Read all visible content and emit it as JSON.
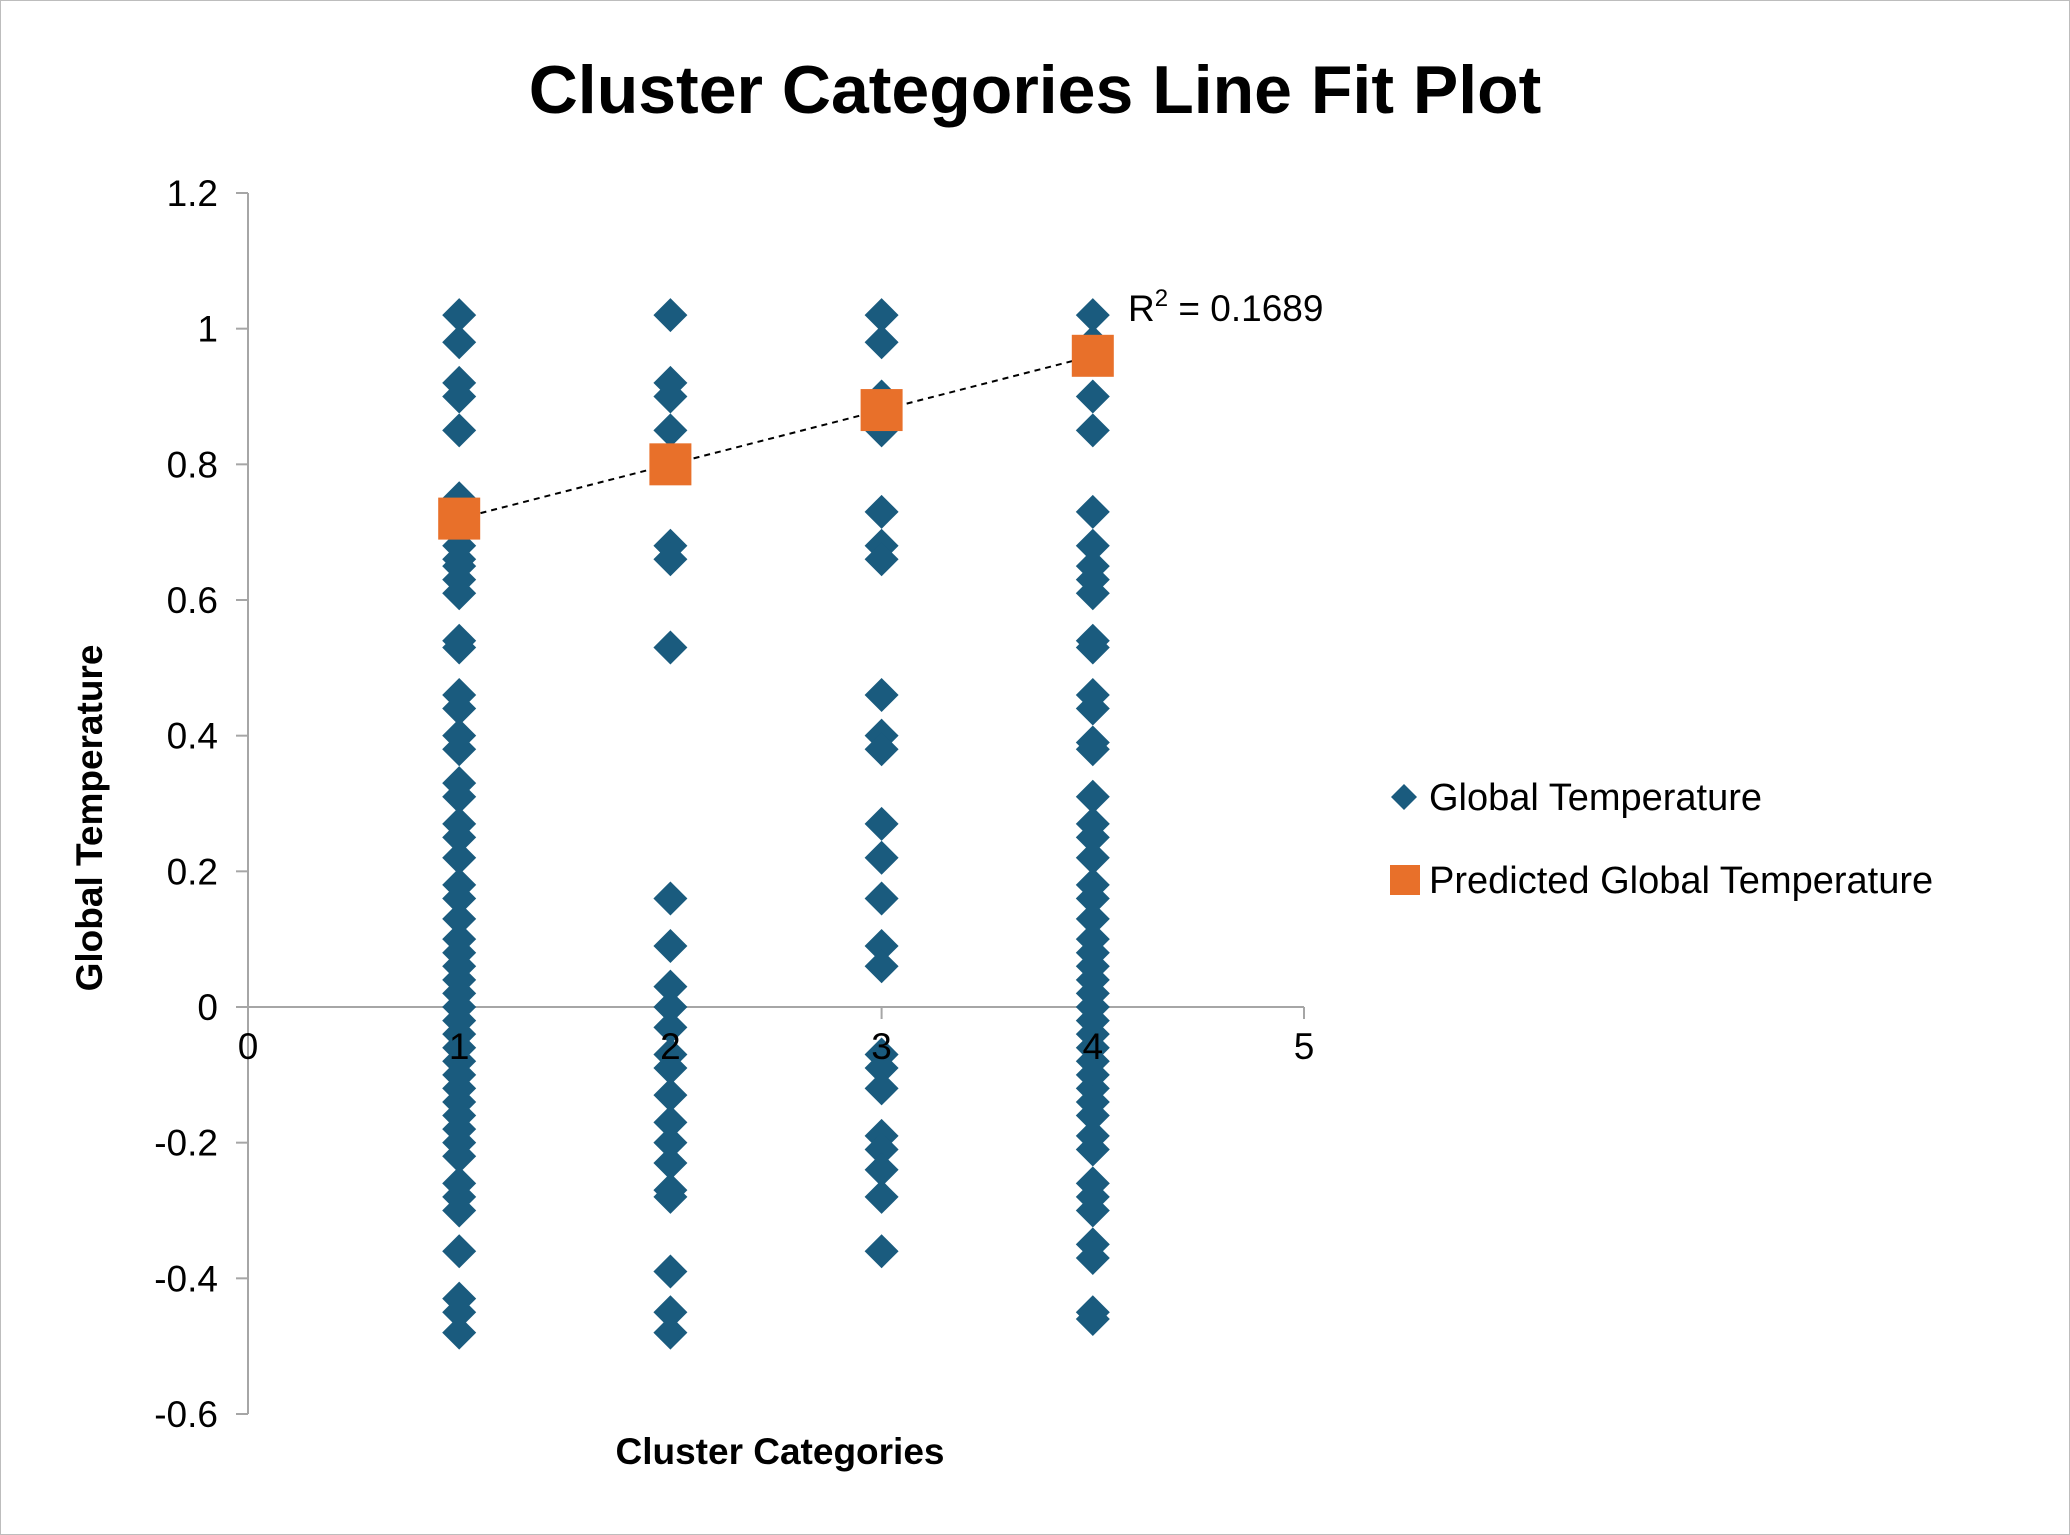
{
  "chart_data": {
    "type": "scatter",
    "title": "Cluster Categories Line Fit  Plot",
    "xlabel": "Cluster Categories",
    "ylabel": "Global Temperature",
    "xlim": [
      0,
      5
    ],
    "ylim": [
      -0.6,
      1.2
    ],
    "x_ticks": [
      "0",
      "1",
      "2",
      "3",
      "4",
      "5"
    ],
    "y_ticks": [
      "1.2",
      "1",
      "0.8",
      "0.6",
      "0.4",
      "0.2",
      "0",
      "-0.2",
      "-0.4",
      "-0.6"
    ],
    "grid": false,
    "legend_position": "right",
    "annotation": "R² = 0.1689",
    "series": [
      {
        "name": "Global Temperature",
        "marker": "diamond",
        "color": "#1a5b7e",
        "points": [
          [
            1,
            1.02
          ],
          [
            1,
            0.98
          ],
          [
            1,
            0.92
          ],
          [
            1,
            0.9
          ],
          [
            1,
            0.85
          ],
          [
            1,
            0.75
          ],
          [
            1,
            0.72
          ],
          [
            1,
            0.7
          ],
          [
            1,
            0.68
          ],
          [
            1,
            0.66
          ],
          [
            1,
            0.65
          ],
          [
            1,
            0.63
          ],
          [
            1,
            0.61
          ],
          [
            1,
            0.54
          ],
          [
            1,
            0.53
          ],
          [
            1,
            0.46
          ],
          [
            1,
            0.44
          ],
          [
            1,
            0.4
          ],
          [
            1,
            0.38
          ],
          [
            1,
            0.33
          ],
          [
            1,
            0.31
          ],
          [
            1,
            0.27
          ],
          [
            1,
            0.25
          ],
          [
            1,
            0.22
          ],
          [
            1,
            0.18
          ],
          [
            1,
            0.16
          ],
          [
            1,
            0.13
          ],
          [
            1,
            0.1
          ],
          [
            1,
            0.08
          ],
          [
            1,
            0.06
          ],
          [
            1,
            0.04
          ],
          [
            1,
            0.02
          ],
          [
            1,
            0.0
          ],
          [
            1,
            -0.02
          ],
          [
            1,
            -0.04
          ],
          [
            1,
            -0.06
          ],
          [
            1,
            -0.08
          ],
          [
            1,
            -0.1
          ],
          [
            1,
            -0.12
          ],
          [
            1,
            -0.14
          ],
          [
            1,
            -0.16
          ],
          [
            1,
            -0.18
          ],
          [
            1,
            -0.2
          ],
          [
            1,
            -0.22
          ],
          [
            1,
            -0.26
          ],
          [
            1,
            -0.28
          ],
          [
            1,
            -0.3
          ],
          [
            1,
            -0.36
          ],
          [
            1,
            -0.43
          ],
          [
            1,
            -0.45
          ],
          [
            1,
            -0.48
          ],
          [
            2,
            1.02
          ],
          [
            2,
            0.92
          ],
          [
            2,
            0.9
          ],
          [
            2,
            0.85
          ],
          [
            2,
            0.8
          ],
          [
            2,
            0.68
          ],
          [
            2,
            0.66
          ],
          [
            2,
            0.53
          ],
          [
            2,
            0.16
          ],
          [
            2,
            0.09
          ],
          [
            2,
            0.03
          ],
          [
            2,
            0.0
          ],
          [
            2,
            -0.03
          ],
          [
            2,
            -0.07
          ],
          [
            2,
            -0.09
          ],
          [
            2,
            -0.13
          ],
          [
            2,
            -0.17
          ],
          [
            2,
            -0.2
          ],
          [
            2,
            -0.23
          ],
          [
            2,
            -0.27
          ],
          [
            2,
            -0.28
          ],
          [
            2,
            -0.39
          ],
          [
            2,
            -0.45
          ],
          [
            2,
            -0.48
          ],
          [
            3,
            1.02
          ],
          [
            3,
            0.98
          ],
          [
            3,
            0.9
          ],
          [
            3,
            0.85
          ],
          [
            3,
            0.73
          ],
          [
            3,
            0.68
          ],
          [
            3,
            0.66
          ],
          [
            3,
            0.46
          ],
          [
            3,
            0.4
          ],
          [
            3,
            0.38
          ],
          [
            3,
            0.27
          ],
          [
            3,
            0.22
          ],
          [
            3,
            0.16
          ],
          [
            3,
            0.09
          ],
          [
            3,
            0.06
          ],
          [
            3,
            -0.07
          ],
          [
            3,
            -0.09
          ],
          [
            3,
            -0.12
          ],
          [
            3,
            -0.19
          ],
          [
            3,
            -0.21
          ],
          [
            3,
            -0.24
          ],
          [
            3,
            -0.28
          ],
          [
            3,
            -0.36
          ],
          [
            4,
            1.02
          ],
          [
            4,
            0.98
          ],
          [
            4,
            0.9
          ],
          [
            4,
            0.85
          ],
          [
            4,
            0.73
          ],
          [
            4,
            0.68
          ],
          [
            4,
            0.65
          ],
          [
            4,
            0.63
          ],
          [
            4,
            0.61
          ],
          [
            4,
            0.54
          ],
          [
            4,
            0.53
          ],
          [
            4,
            0.46
          ],
          [
            4,
            0.44
          ],
          [
            4,
            0.39
          ],
          [
            4,
            0.38
          ],
          [
            4,
            0.31
          ],
          [
            4,
            0.27
          ],
          [
            4,
            0.25
          ],
          [
            4,
            0.22
          ],
          [
            4,
            0.18
          ],
          [
            4,
            0.16
          ],
          [
            4,
            0.13
          ],
          [
            4,
            0.1
          ],
          [
            4,
            0.08
          ],
          [
            4,
            0.06
          ],
          [
            4,
            0.04
          ],
          [
            4,
            0.02
          ],
          [
            4,
            0.0
          ],
          [
            4,
            -0.02
          ],
          [
            4,
            -0.04
          ],
          [
            4,
            -0.06
          ],
          [
            4,
            -0.08
          ],
          [
            4,
            -0.1
          ],
          [
            4,
            -0.12
          ],
          [
            4,
            -0.14
          ],
          [
            4,
            -0.16
          ],
          [
            4,
            -0.19
          ],
          [
            4,
            -0.21
          ],
          [
            4,
            -0.26
          ],
          [
            4,
            -0.28
          ],
          [
            4,
            -0.3
          ],
          [
            4,
            -0.35
          ],
          [
            4,
            -0.37
          ],
          [
            4,
            -0.45
          ],
          [
            4,
            -0.46
          ]
        ]
      },
      {
        "name": "Predicted Global Temperature",
        "marker": "square",
        "color": "#e8702a",
        "points": [
          [
            1,
            0.72
          ],
          [
            2,
            0.8
          ],
          [
            3,
            0.88
          ],
          [
            4,
            0.96
          ]
        ]
      }
    ],
    "trendline": {
      "style": "dashed",
      "color": "#000000",
      "points": [
        [
          1,
          0.72
        ],
        [
          4,
          0.96
        ]
      ]
    }
  }
}
